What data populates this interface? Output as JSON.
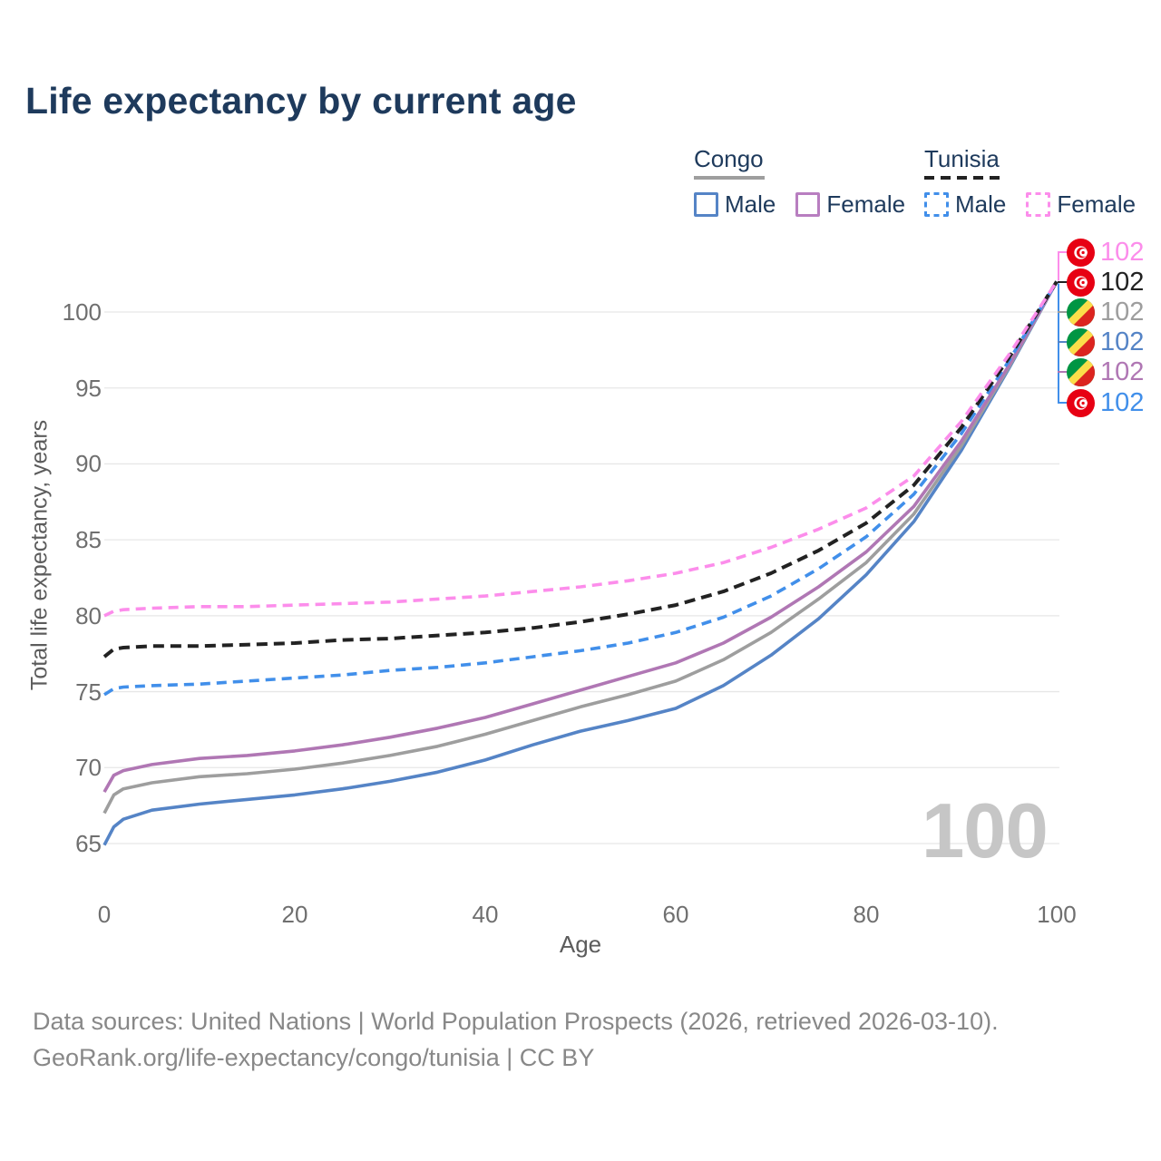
{
  "title": "Life expectancy by current age",
  "watermark": "100",
  "colors": {
    "heading_navy": "#1e3a5c",
    "tick_gray": "#6f6f6f",
    "grid_gray": "#e7e7e7",
    "watermark_gray": "#c6c6c6",
    "footer_gray": "#888888"
  },
  "legend": {
    "groups": [
      {
        "country": "Congo",
        "line_style": "solid",
        "line_color": "#9e9e9e",
        "items": [
          {
            "label": "Male",
            "color": "#5584c6",
            "style": "solid"
          },
          {
            "label": "Female",
            "color": "#b87ec0",
            "style": "solid"
          }
        ]
      },
      {
        "country": "Tunisia",
        "line_style": "dashed",
        "line_color": "#222222",
        "items": [
          {
            "label": "Male",
            "color": "#418fea",
            "style": "dashed"
          },
          {
            "label": "Female",
            "color": "#fc8deb",
            "style": "dashed"
          }
        ]
      }
    ]
  },
  "chart_data": {
    "type": "line",
    "title": "Life expectancy by current age",
    "xlabel": "Age",
    "ylabel": "Total life expectancy, years",
    "xlim": [
      0,
      100
    ],
    "ylim": [
      63.5,
      103.5
    ],
    "xticks": [
      0,
      20,
      40,
      60,
      80,
      100
    ],
    "yticks": [
      65,
      70,
      75,
      80,
      85,
      90,
      95,
      100
    ],
    "grid": "horizontal",
    "legend_position": "top-right",
    "x": [
      0,
      1,
      2,
      5,
      10,
      15,
      20,
      25,
      30,
      35,
      40,
      45,
      50,
      55,
      60,
      65,
      70,
      75,
      80,
      85,
      90,
      95,
      100
    ],
    "series": [
      {
        "name": "Congo Male",
        "country": "Congo",
        "sex": "Male",
        "style": "solid",
        "color": "#5584c6",
        "values": [
          64.9,
          66.1,
          66.6,
          67.2,
          67.6,
          67.9,
          68.2,
          68.6,
          69.1,
          69.7,
          70.5,
          71.5,
          72.4,
          73.1,
          73.9,
          75.4,
          77.4,
          79.8,
          82.7,
          86.2,
          90.9,
          96.3,
          102
        ]
      },
      {
        "name": "Congo",
        "country": "Congo",
        "sex": "Both",
        "style": "solid",
        "color": "#9e9e9e",
        "values": [
          67.0,
          68.2,
          68.6,
          69.0,
          69.4,
          69.6,
          69.9,
          70.3,
          70.8,
          71.4,
          72.2,
          73.1,
          74.0,
          74.8,
          75.7,
          77.1,
          78.9,
          81.1,
          83.5,
          86.7,
          91.2,
          96.4,
          102
        ]
      },
      {
        "name": "Congo Female",
        "country": "Congo",
        "sex": "Female",
        "style": "solid",
        "color": "#b077b4",
        "values": [
          68.4,
          69.5,
          69.8,
          70.2,
          70.6,
          70.8,
          71.1,
          71.5,
          72.0,
          72.6,
          73.3,
          74.2,
          75.1,
          76.0,
          76.9,
          78.2,
          79.9,
          81.9,
          84.2,
          87.2,
          91.5,
          96.5,
          102
        ]
      },
      {
        "name": "Tunisia Male",
        "country": "Tunisia",
        "sex": "Male",
        "style": "dashed",
        "color": "#418fea",
        "values": [
          74.8,
          75.2,
          75.3,
          75.4,
          75.5,
          75.7,
          75.9,
          76.1,
          76.4,
          76.6,
          76.9,
          77.3,
          77.7,
          78.2,
          78.9,
          79.9,
          81.3,
          83.1,
          85.2,
          88.0,
          92.0,
          96.8,
          102
        ]
      },
      {
        "name": "Tunisia",
        "country": "Tunisia",
        "sex": "Both",
        "style": "dashed",
        "color": "#222222",
        "values": [
          77.3,
          77.8,
          77.9,
          78.0,
          78.0,
          78.1,
          78.2,
          78.4,
          78.5,
          78.7,
          78.9,
          79.2,
          79.6,
          80.1,
          80.7,
          81.6,
          82.8,
          84.3,
          86.1,
          88.6,
          92.4,
          97.0,
          102
        ]
      },
      {
        "name": "Tunisia Female",
        "country": "Tunisia",
        "sex": "Female",
        "style": "dashed",
        "color": "#fc8deb",
        "values": [
          80.0,
          80.3,
          80.4,
          80.5,
          80.6,
          80.6,
          80.7,
          80.8,
          80.9,
          81.1,
          81.3,
          81.6,
          81.9,
          82.3,
          82.8,
          83.5,
          84.5,
          85.7,
          87.1,
          89.2,
          92.8,
          97.2,
          102
        ]
      }
    ]
  },
  "end_labels": [
    {
      "flag": "tunisia",
      "value": "102",
      "color": "#fc8deb"
    },
    {
      "flag": "tunisia",
      "value": "102",
      "color": "#222222"
    },
    {
      "flag": "congo",
      "value": "102",
      "color": "#9e9e9e"
    },
    {
      "flag": "congo",
      "value": "102",
      "color": "#5584c6"
    },
    {
      "flag": "congo",
      "value": "102",
      "color": "#b077b4"
    },
    {
      "flag": "tunisia",
      "value": "102",
      "color": "#418fea"
    }
  ],
  "flag_colors": {
    "tunisia_red": "#e70013",
    "congo_green": "#009543",
    "congo_yellow": "#fbde4a",
    "congo_red": "#dc241f",
    "white": "#ffffff"
  },
  "footer": {
    "line1": "Data sources: United Nations | World Population Prospects (2026, retrieved 2026-03-10).",
    "line2": "GeoRank.org/life-expectancy/congo/tunisia | CC BY"
  }
}
